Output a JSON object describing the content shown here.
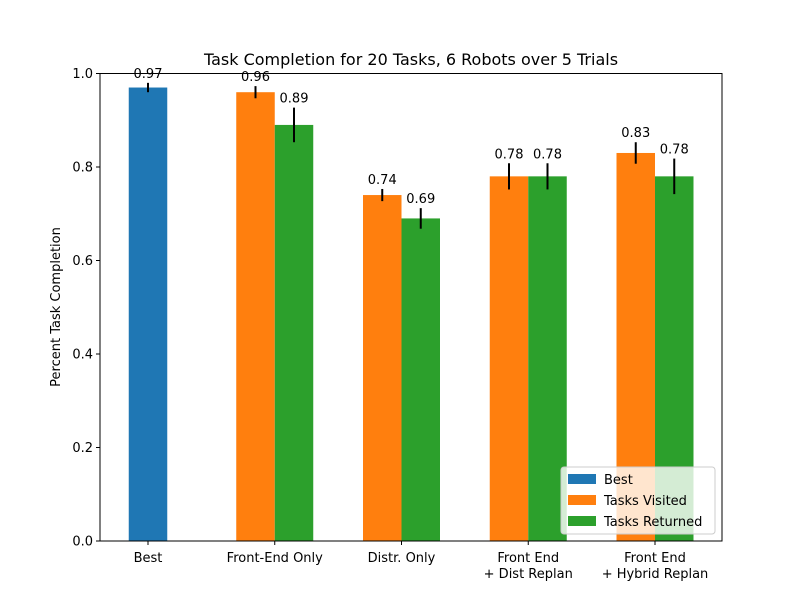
{
  "chart_data": {
    "type": "bar",
    "title": "Task Completion for 20 Tasks, 6 Robots over 5 Trials",
    "xlabel": "",
    "ylabel": "Percent Task Completion",
    "ylim": [
      0,
      1.0
    ],
    "yticks": [
      "0.0",
      "0.2",
      "0.4",
      "0.6",
      "0.8",
      "1.0"
    ],
    "grid": false,
    "legend_position": "lower-right",
    "categories": [
      [
        "Best"
      ],
      [
        "Front-End Only"
      ],
      [
        "Distr. Only"
      ],
      [
        "Front End",
        "+ Dist Replan"
      ],
      [
        "Front End",
        "+ Hybrid Replan"
      ]
    ],
    "series": [
      {
        "name": "Best",
        "color": "#1f77b4",
        "values": [
          0.97,
          null,
          null,
          null,
          null
        ],
        "errors": [
          0.01,
          null,
          null,
          null,
          null
        ],
        "labels": [
          "0.97",
          null,
          null,
          null,
          null
        ]
      },
      {
        "name": "Tasks Visited",
        "color": "#ff7f0e",
        "values": [
          null,
          0.96,
          0.74,
          0.78,
          0.83
        ],
        "errors": [
          null,
          0.013,
          0.013,
          0.028,
          0.023
        ],
        "labels": [
          null,
          "0.96",
          "0.74",
          "0.78",
          "0.83"
        ]
      },
      {
        "name": "Tasks Returned",
        "color": "#2ca02c",
        "values": [
          null,
          0.89,
          0.69,
          0.78,
          0.78
        ],
        "errors": [
          null,
          0.037,
          0.022,
          0.028,
          0.038
        ],
        "labels": [
          null,
          "0.89",
          "0.69",
          "0.78",
          "0.78"
        ]
      }
    ]
  }
}
